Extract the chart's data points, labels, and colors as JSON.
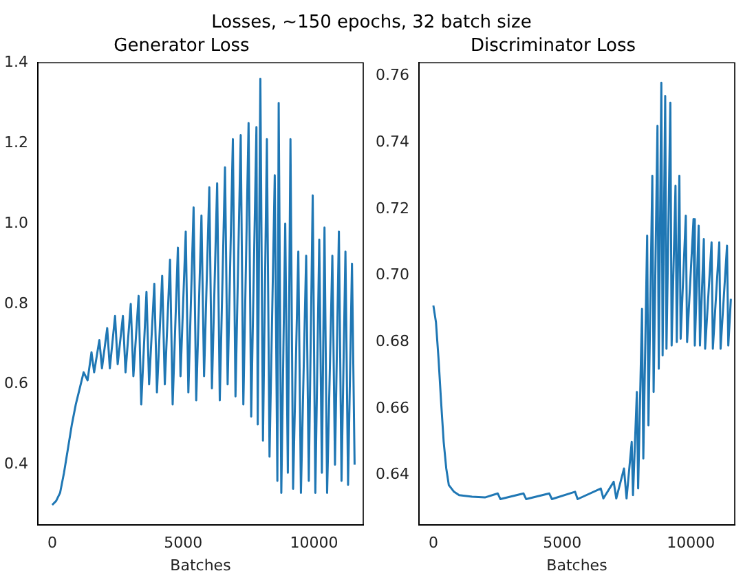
{
  "chart_data": [
    {
      "type": "line",
      "title": "Generator Loss",
      "xlabel": "Batches",
      "annotations": [
        "Losses, ~150 epochs, 32 batch size"
      ],
      "xlim": [
        -550,
        11880
      ],
      "xticks": [
        0,
        5000,
        10000
      ],
      "ylim": [
        0.25,
        1.4
      ],
      "yticks": [
        0.4,
        0.6,
        0.8,
        {
          "value": 1,
          "label": "1.0"
        },
        1.2,
        1.4
      ],
      "grid": false,
      "legend": false,
      "x": [
        0,
        150,
        300,
        450,
        600,
        750,
        900,
        1050,
        1200,
        1350,
        1500,
        1600,
        1800,
        1900,
        2100,
        2200,
        2400,
        2500,
        2700,
        2800,
        3000,
        3100,
        3300,
        3400,
        3600,
        3700,
        3900,
        4000,
        4200,
        4300,
        4500,
        4600,
        4800,
        4900,
        5100,
        5200,
        5400,
        5500,
        5700,
        5800,
        6000,
        6100,
        6300,
        6400,
        6600,
        6700,
        6900,
        7000,
        7200,
        7300,
        7500,
        7600,
        7800,
        7850,
        7950,
        8050,
        8200,
        8300,
        8500,
        8600,
        8650,
        8750,
        8900,
        9000,
        9100,
        9200,
        9400,
        9500,
        9700,
        9800,
        9950,
        10050,
        10200,
        10300,
        10400,
        10500,
        10700,
        10800,
        10950,
        11050,
        11200,
        11300,
        11450,
        11550
      ],
      "series": [
        {
          "color": "#1f77b4",
          "values": [
            0.3,
            0.31,
            0.33,
            0.38,
            0.44,
            0.5,
            0.55,
            0.59,
            0.63,
            0.61,
            0.68,
            0.63,
            0.71,
            0.64,
            0.74,
            0.64,
            0.77,
            0.65,
            0.77,
            0.63,
            0.8,
            0.62,
            0.82,
            0.55,
            0.83,
            0.6,
            0.85,
            0.58,
            0.87,
            0.6,
            0.91,
            0.55,
            0.94,
            0.62,
            0.98,
            0.58,
            1.04,
            0.56,
            1.02,
            0.62,
            1.09,
            0.59,
            1.1,
            0.56,
            1.14,
            0.6,
            1.21,
            0.57,
            1.22,
            0.55,
            1.25,
            0.52,
            1.24,
            0.5,
            1.36,
            0.46,
            1.21,
            0.42,
            1.12,
            0.36,
            1.3,
            0.33,
            1.0,
            0.38,
            1.21,
            0.34,
            0.93,
            0.33,
            0.92,
            0.36,
            1.07,
            0.33,
            0.96,
            0.38,
            0.99,
            0.33,
            0.92,
            0.4,
            0.98,
            0.36,
            0.93,
            0.35,
            0.9,
            0.4
          ]
        }
      ]
    },
    {
      "type": "line",
      "title": "Discriminator Loss",
      "xlabel": "Batches",
      "xlim": [
        -560,
        11700
      ],
      "xticks": [
        0,
        5000,
        10000
      ],
      "ylim": [
        0.625,
        0.764
      ],
      "yticks": [
        0.64,
        0.66,
        0.68,
        {
          "value": 0.7,
          "label": "0.70"
        },
        0.72,
        0.74,
        0.76
      ],
      "grid": false,
      "legend": false,
      "x": [
        0,
        100,
        200,
        300,
        400,
        500,
        600,
        800,
        1000,
        1500,
        2000,
        2500,
        2600,
        3500,
        3600,
        4500,
        4600,
        5500,
        5600,
        6500,
        6600,
        7000,
        7100,
        7400,
        7500,
        7700,
        7750,
        7900,
        7950,
        8100,
        8150,
        8300,
        8350,
        8500,
        8550,
        8700,
        8750,
        8850,
        8900,
        9000,
        9050,
        9200,
        9250,
        9400,
        9450,
        9550,
        9600,
        9800,
        9850,
        10100,
        10150,
        10300,
        10350,
        10500,
        10550,
        10800,
        10850,
        11100,
        11150,
        11400,
        11450,
        11550
      ],
      "series": [
        {
          "color": "#1f77b4",
          "values": [
            0.691,
            0.686,
            0.675,
            0.662,
            0.65,
            0.642,
            0.637,
            0.635,
            0.634,
            0.6335,
            0.6333,
            0.6345,
            0.6328,
            0.6345,
            0.6328,
            0.6345,
            0.6328,
            0.635,
            0.6328,
            0.636,
            0.633,
            0.638,
            0.633,
            0.642,
            0.633,
            0.65,
            0.634,
            0.665,
            0.636,
            0.69,
            0.645,
            0.712,
            0.655,
            0.73,
            0.665,
            0.745,
            0.672,
            0.758,
            0.676,
            0.754,
            0.678,
            0.752,
            0.679,
            0.727,
            0.68,
            0.73,
            0.681,
            0.718,
            0.68,
            0.717,
            0.679,
            0.715,
            0.679,
            0.711,
            0.678,
            0.71,
            0.678,
            0.71,
            0.678,
            0.709,
            0.679,
            0.693
          ]
        }
      ]
    }
  ]
}
